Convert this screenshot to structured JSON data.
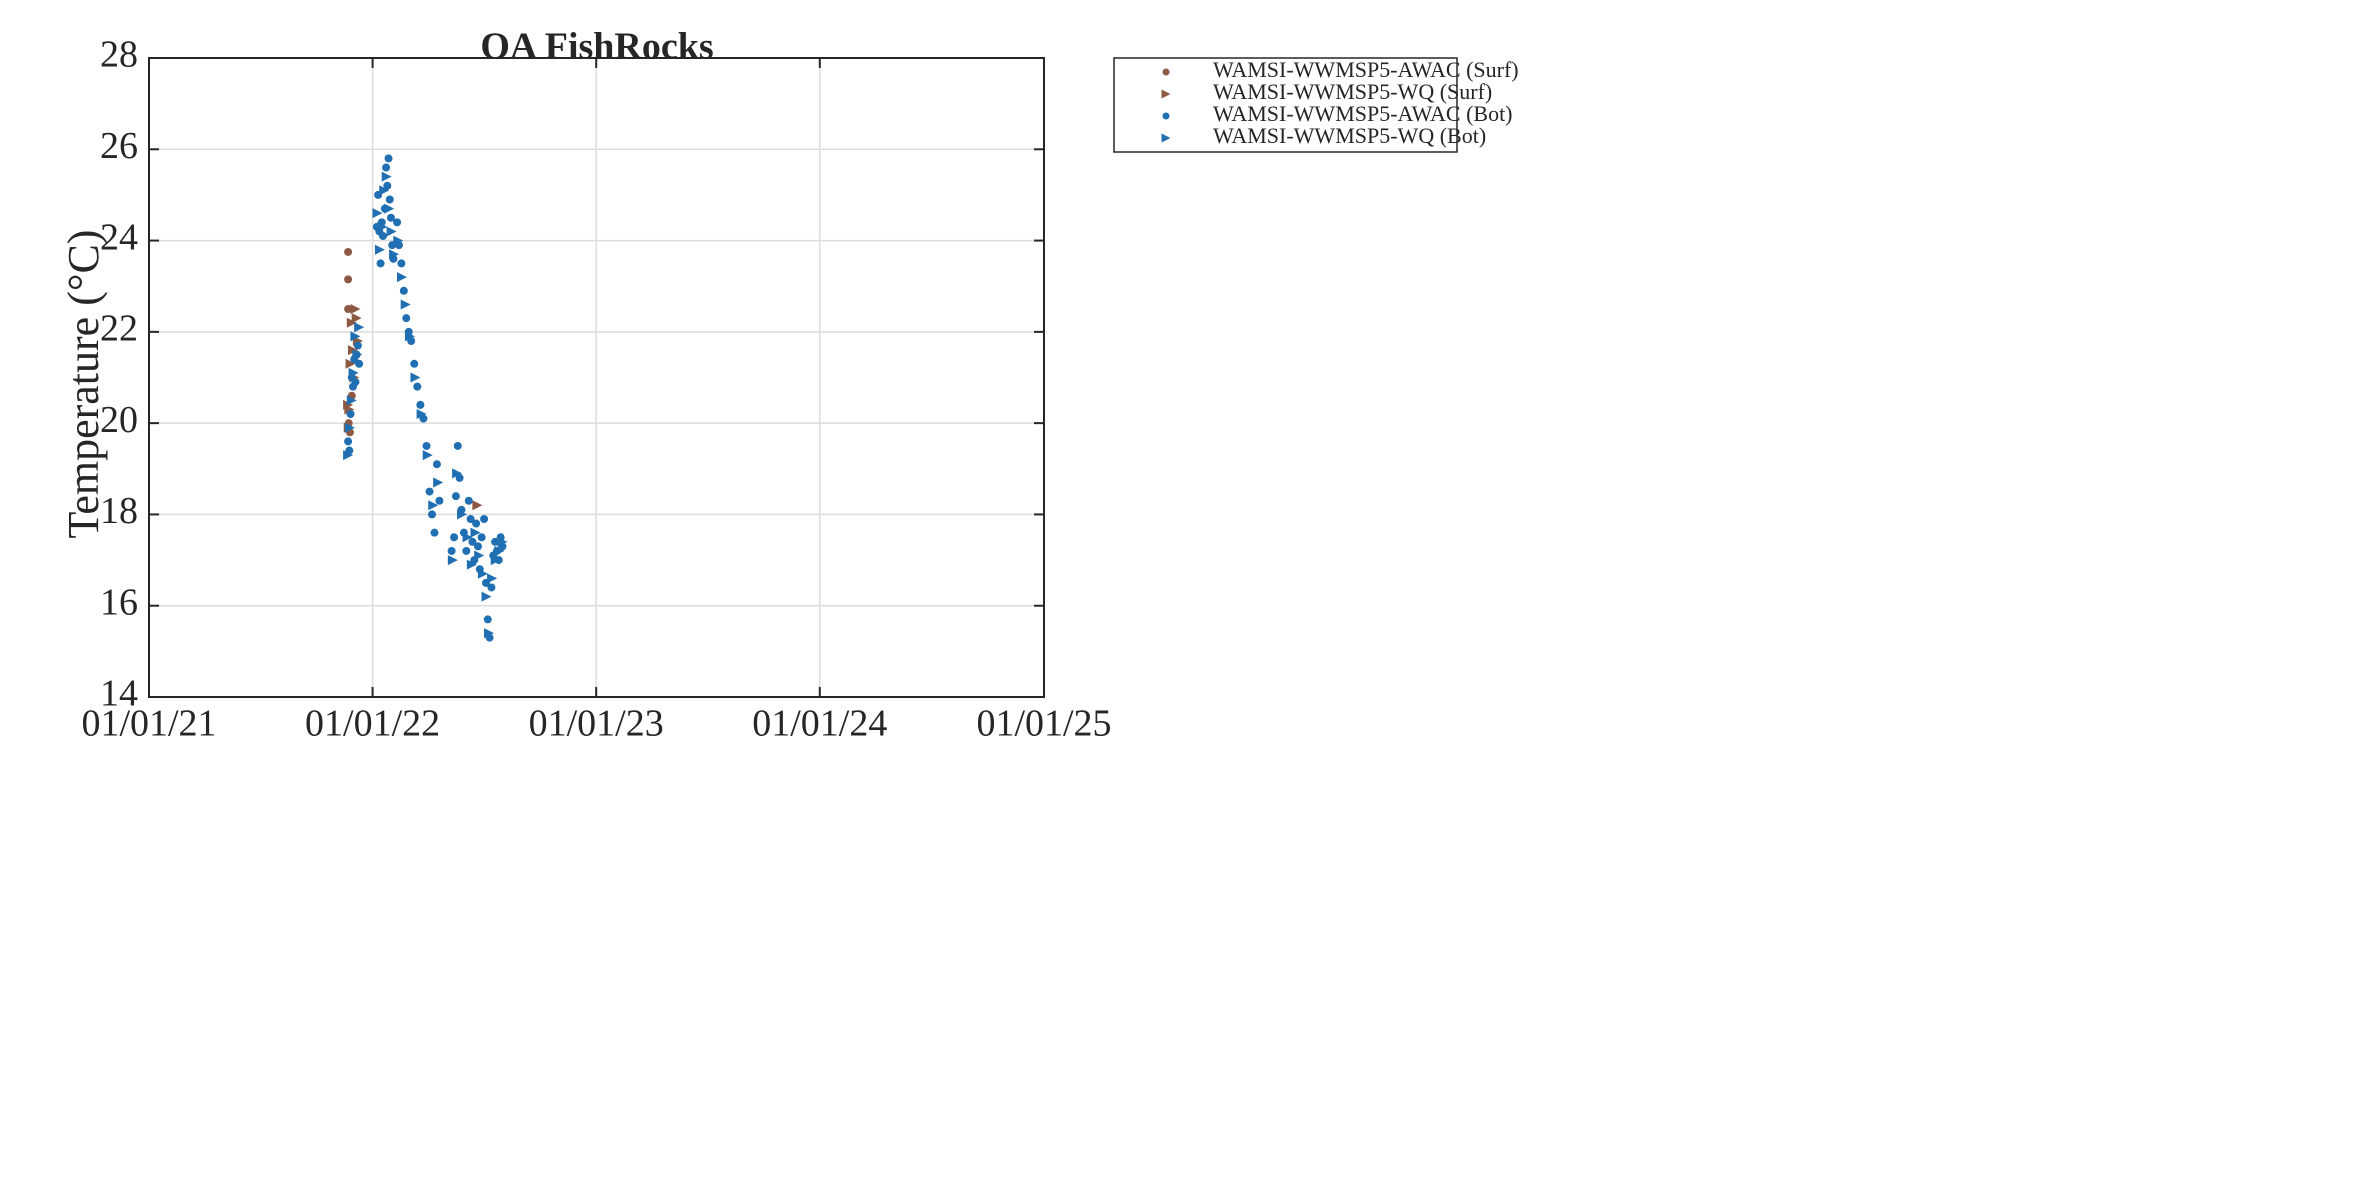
{
  "chart_data": {
    "type": "scatter",
    "title": "OA FishRocks",
    "xlabel": "",
    "ylabel": "Temperature (°C)",
    "x_type": "date",
    "xlim": [
      "2021-01-01",
      "2025-01-01"
    ],
    "ylim": [
      14,
      28
    ],
    "xticks": [
      "2021-01-01",
      "2022-01-01",
      "2023-01-01",
      "2024-01-01",
      "2025-01-01"
    ],
    "xtick_labels": [
      "01/01/21",
      "01/01/22",
      "01/01/23",
      "01/01/24",
      "01/01/25"
    ],
    "yticks": [
      14,
      16,
      18,
      20,
      22,
      24,
      26,
      28
    ],
    "ytick_labels": [
      "14",
      "16",
      "18",
      "20",
      "22",
      "24",
      "26",
      "28"
    ],
    "grid": true,
    "legend_position": "outside top-right",
    "series": [
      {
        "name": "WAMSI-WWMSP5-AWAC (Surf)",
        "marker": "circle",
        "color": "#8c5a43",
        "points": [
          [
            "2021-11-22",
            23.75
          ],
          [
            "2021-11-22",
            23.15
          ],
          [
            "2021-11-22",
            22.5
          ],
          [
            "2021-11-23",
            20.0
          ],
          [
            "2021-11-25",
            19.8
          ],
          [
            "2021-11-28",
            20.6
          ]
        ]
      },
      {
        "name": "WAMSI-WWMSP5-WQ (Surf)",
        "marker": "triangle-right",
        "color": "#8c5a43",
        "points": [
          [
            "2021-11-22",
            20.4
          ],
          [
            "2021-11-23",
            19.9
          ],
          [
            "2021-11-24",
            20.3
          ],
          [
            "2021-11-26",
            21.3
          ],
          [
            "2021-11-28",
            22.2
          ],
          [
            "2021-11-30",
            21.6
          ],
          [
            "2021-12-02",
            21.0
          ],
          [
            "2021-12-04",
            22.5
          ],
          [
            "2021-12-06",
            22.3
          ],
          [
            "2021-12-08",
            21.8
          ],
          [
            "2022-06-21",
            18.2
          ]
        ]
      },
      {
        "name": "WAMSI-WWMSP5-AWAC (Bot)",
        "marker": "circle",
        "color": "#1f6fb2",
        "points": [
          [
            "2021-11-22",
            19.6
          ],
          [
            "2021-11-24",
            19.4
          ],
          [
            "2021-11-26",
            20.2
          ],
          [
            "2021-11-28",
            21.0
          ],
          [
            "2021-11-30",
            20.8
          ],
          [
            "2021-12-02",
            21.4
          ],
          [
            "2021-12-04",
            20.9
          ],
          [
            "2021-12-06",
            21.5
          ],
          [
            "2021-12-08",
            21.7
          ],
          [
            "2021-12-10",
            21.3
          ],
          [
            "2022-01-08",
            24.3
          ],
          [
            "2022-01-10",
            25.0
          ],
          [
            "2022-01-12",
            24.2
          ],
          [
            "2022-01-14",
            23.5
          ],
          [
            "2022-01-16",
            24.4
          ],
          [
            "2022-01-18",
            24.1
          ],
          [
            "2022-01-21",
            24.7
          ],
          [
            "2022-01-23",
            25.6
          ],
          [
            "2022-01-25",
            25.2
          ],
          [
            "2022-01-27",
            25.8
          ],
          [
            "2022-01-29",
            24.9
          ],
          [
            "2022-01-31",
            24.5
          ],
          [
            "2022-02-02",
            23.9
          ],
          [
            "2022-02-04",
            23.6
          ],
          [
            "2022-02-10",
            24.4
          ],
          [
            "2022-02-13",
            23.9
          ],
          [
            "2022-02-17",
            23.5
          ],
          [
            "2022-02-21",
            22.9
          ],
          [
            "2022-02-25",
            22.3
          ],
          [
            "2022-03-01",
            22.0
          ],
          [
            "2022-03-05",
            21.8
          ],
          [
            "2022-03-10",
            21.3
          ],
          [
            "2022-03-15",
            20.8
          ],
          [
            "2022-03-20",
            20.4
          ],
          [
            "2022-03-25",
            20.1
          ],
          [
            "2022-03-30",
            19.5
          ],
          [
            "2022-04-04",
            18.5
          ],
          [
            "2022-04-08",
            18.0
          ],
          [
            "2022-04-12",
            17.6
          ],
          [
            "2022-04-16",
            19.1
          ],
          [
            "2022-04-20",
            18.3
          ],
          [
            "2022-05-10",
            17.2
          ],
          [
            "2022-05-14",
            17.5
          ],
          [
            "2022-05-17",
            18.4
          ],
          [
            "2022-05-20",
            19.5
          ],
          [
            "2022-05-23",
            18.8
          ],
          [
            "2022-05-26",
            18.1
          ],
          [
            "2022-05-30",
            17.6
          ],
          [
            "2022-06-03",
            17.2
          ],
          [
            "2022-06-07",
            18.3
          ],
          [
            "2022-06-10",
            17.9
          ],
          [
            "2022-06-13",
            17.4
          ],
          [
            "2022-06-16",
            17.0
          ],
          [
            "2022-06-19",
            17.8
          ],
          [
            "2022-06-22",
            17.3
          ],
          [
            "2022-06-25",
            16.8
          ],
          [
            "2022-06-28",
            17.5
          ],
          [
            "2022-07-02",
            17.9
          ],
          [
            "2022-07-05",
            16.5
          ],
          [
            "2022-07-08",
            15.7
          ],
          [
            "2022-07-11",
            15.3
          ],
          [
            "2022-07-14",
            16.4
          ],
          [
            "2022-07-17",
            17.1
          ],
          [
            "2022-07-20",
            17.4
          ],
          [
            "2022-07-23",
            17.2
          ],
          [
            "2022-07-26",
            17.0
          ],
          [
            "2022-07-29",
            17.5
          ],
          [
            "2022-08-01",
            17.3
          ]
        ]
      },
      {
        "name": "WAMSI-WWMSP5-WQ (Bot)",
        "marker": "triangle-right",
        "color": "#1f6fb2",
        "points": [
          [
            "2021-11-22",
            19.3
          ],
          [
            "2021-11-25",
            19.9
          ],
          [
            "2021-11-28",
            20.5
          ],
          [
            "2021-12-01",
            21.1
          ],
          [
            "2021-12-04",
            21.9
          ],
          [
            "2021-12-07",
            21.5
          ],
          [
            "2021-12-10",
            22.1
          ],
          [
            "2022-01-09",
            24.6
          ],
          [
            "2022-01-13",
            23.8
          ],
          [
            "2022-01-17",
            24.3
          ],
          [
            "2022-01-20",
            25.1
          ],
          [
            "2022-01-24",
            25.4
          ],
          [
            "2022-01-28",
            24.7
          ],
          [
            "2022-02-01",
            24.2
          ],
          [
            "2022-02-05",
            23.7
          ],
          [
            "2022-02-12",
            24.0
          ],
          [
            "2022-02-18",
            23.2
          ],
          [
            "2022-02-24",
            22.6
          ],
          [
            "2022-03-03",
            21.9
          ],
          [
            "2022-03-12",
            21.0
          ],
          [
            "2022-03-22",
            20.2
          ],
          [
            "2022-04-01",
            19.3
          ],
          [
            "2022-04-10",
            18.2
          ],
          [
            "2022-04-18",
            18.7
          ],
          [
            "2022-05-12",
            17.0
          ],
          [
            "2022-05-19",
            18.9
          ],
          [
            "2022-05-27",
            18.0
          ],
          [
            "2022-06-05",
            17.5
          ],
          [
            "2022-06-12",
            16.9
          ],
          [
            "2022-06-18",
            17.6
          ],
          [
            "2022-06-24",
            17.1
          ],
          [
            "2022-06-30",
            16.7
          ],
          [
            "2022-07-06",
            16.2
          ],
          [
            "2022-07-10",
            15.4
          ],
          [
            "2022-07-15",
            16.6
          ],
          [
            "2022-07-21",
            17.0
          ],
          [
            "2022-07-27",
            17.2
          ],
          [
            "2022-08-01",
            17.4
          ]
        ]
      }
    ]
  }
}
